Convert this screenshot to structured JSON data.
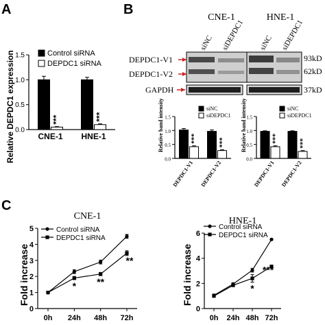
{
  "figure": {
    "colors": {
      "ink": "#000000",
      "bar_black": "#000000",
      "bar_white": "#ffffff",
      "arrow_red": "#cc2222",
      "blot_bg": "#d8d8d8"
    },
    "panels": {
      "A": {
        "letter": "A",
        "chart_data": {
          "type": "bar",
          "ylabel": "Relative DEPDC1 expression",
          "ylim": [
            0,
            1.5
          ],
          "yticks": [
            "0.0",
            "0.5",
            "1.0",
            "1.5"
          ],
          "categories": [
            "CNE-1",
            "HNE-1"
          ],
          "legend": [
            "Control siRNA",
            "DEPDC1 siRNA"
          ],
          "series": [
            {
              "name": "Control siRNA",
              "values": [
                1.0,
                1.0
              ],
              "errors": [
                0.07,
                0.05
              ]
            },
            {
              "name": "DEPDC1 siRNA",
              "values": [
                0.05,
                0.1
              ],
              "errors": [
                0.01,
                0.015
              ]
            }
          ],
          "significance": [
            "***",
            "***"
          ]
        }
      },
      "B": {
        "letter": "B",
        "blot": {
          "cell_lines": [
            "CNE-1",
            "HNE-1"
          ],
          "lanes": [
            "siNC",
            "siDEPDC1",
            "siNC",
            "siDEPDC1"
          ],
          "rows": [
            "DEPDC1-V1",
            "DEPDC1-V2",
            "GAPDH"
          ],
          "sizes": [
            "93kD",
            "62kD",
            "37kD"
          ]
        },
        "chart_data": [
          {
            "type": "bar",
            "ylabel": "Relative band intensity",
            "ylim": [
              0,
              1.5
            ],
            "yticks": [
              "0.0",
              "0.5",
              "1.0",
              "1.5"
            ],
            "categories": [
              "DEPDC1-V1",
              "DEPDC1-V2"
            ],
            "legend": [
              "siNC",
              "siDEPDC1"
            ],
            "series": [
              {
                "name": "siNC",
                "values": [
                  1.02,
                  0.97
                ],
                "errors": [
                  0.05,
                  0.05
                ]
              },
              {
                "name": "siDEPDC1",
                "values": [
                  0.42,
                  0.28
                ],
                "errors": [
                  0.03,
                  0.03
                ]
              }
            ],
            "significance": [
              "***",
              "***"
            ]
          },
          {
            "type": "bar",
            "ylabel": "Relative band intensity",
            "ylim": [
              0,
              1.5
            ],
            "yticks": [
              "0.0",
              "0.5",
              "1.0",
              "1.5"
            ],
            "categories": [
              "DEPDC1-V1",
              "DEPDC1-V2"
            ],
            "legend": [
              "siNC",
              "siDEPDC1"
            ],
            "series": [
              {
                "name": "siNC",
                "values": [
                  0.97,
                  0.97
                ],
                "errors": [
                  0.02,
                  0.02
                ]
              },
              {
                "name": "siDEPDC1",
                "values": [
                  0.42,
                  0.25
                ],
                "errors": [
                  0.03,
                  0.03
                ]
              }
            ],
            "significance": [
              "***",
              "***"
            ]
          }
        ]
      },
      "C": {
        "letter": "C",
        "chart_data": [
          {
            "type": "line",
            "title": "CNE-1",
            "ylabel": "Fold increase",
            "ylim": [
              0,
              5
            ],
            "yticks": [
              "0",
              "1",
              "2",
              "3",
              "4",
              "5"
            ],
            "x": [
              "0h",
              "24h",
              "48h",
              "72h"
            ],
            "legend": [
              "Control siRNA",
              "DEPDC1 siRNA"
            ],
            "series": [
              {
                "name": "Control siRNA",
                "values": [
                  1.0,
                  2.3,
                  2.9,
                  4.5
                ],
                "errors": [
                  0.05,
                  0.12,
                  0.12,
                  0.12
                ]
              },
              {
                "name": "DEPDC1 siRNA",
                "values": [
                  1.0,
                  1.9,
                  2.15,
                  3.45
                ],
                "errors": [
                  0.05,
                  0.1,
                  0.1,
                  0.15
                ]
              }
            ],
            "significance": [
              "",
              "*",
              "**",
              "**"
            ]
          },
          {
            "type": "line",
            "title": "HNE-1",
            "ylabel": "Fold increase",
            "ylim": [
              0,
              6
            ],
            "yticks": [
              "0",
              "2",
              "4",
              "6"
            ],
            "x": [
              "0h",
              "24h",
              "48h",
              "72h"
            ],
            "legend": [
              "Control siRNA",
              "DEPDC1 siRNA"
            ],
            "series": [
              {
                "name": "Control siRNA",
                "values": [
                  1.05,
                  1.95,
                  3.05,
                  5.5
                ],
                "errors": [
                  0.1,
                  0.1,
                  0.15,
                  0.05
                ]
              },
              {
                "name": "DEPDC1 siRNA",
                "values": [
                  1.0,
                  1.85,
                  2.4,
                  3.35
                ],
                "errors": [
                  0.1,
                  0.1,
                  0.3,
                  0.1
                ]
              }
            ],
            "significance": [
              "",
              "",
              "*",
              "***"
            ]
          }
        ]
      }
    }
  }
}
